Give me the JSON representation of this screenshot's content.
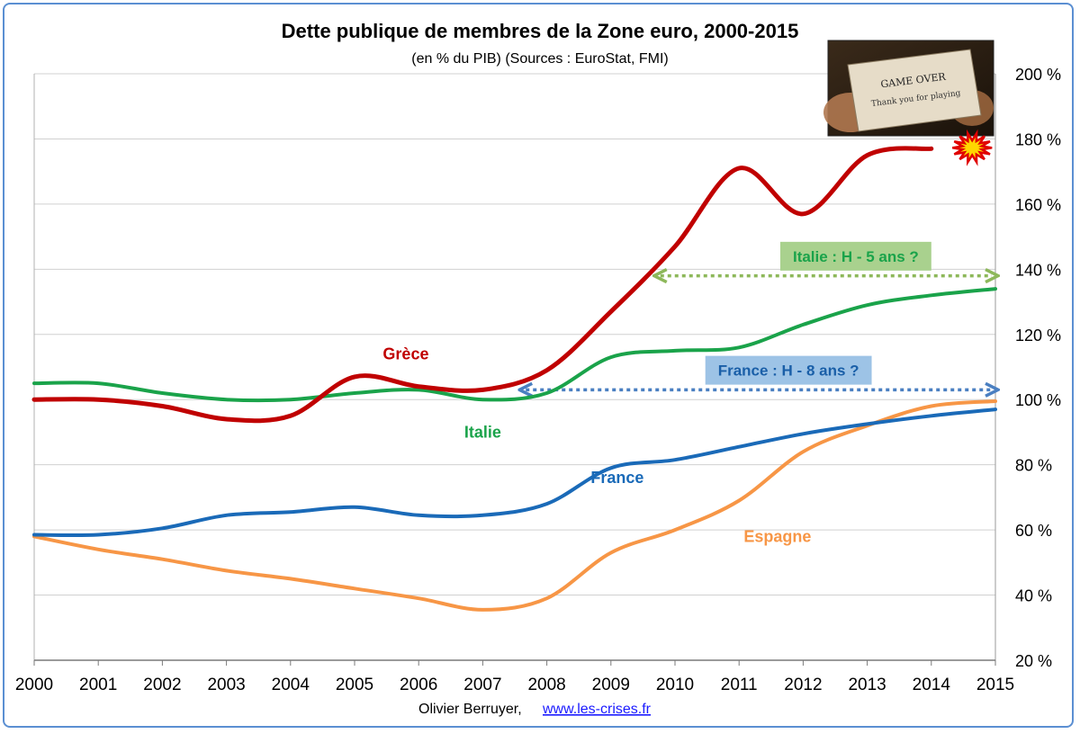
{
  "chart_data": {
    "type": "line",
    "title": "Dette publique de membres de la Zone euro, 2000-2015",
    "subtitle": "(en % du PIB) (Sources : EuroStat, FMI)",
    "x": [
      2000,
      2001,
      2002,
      2003,
      2004,
      2005,
      2006,
      2007,
      2008,
      2009,
      2010,
      2011,
      2012,
      2013,
      2014,
      2015
    ],
    "x_tick_labels": [
      "2000",
      "2001",
      "2002",
      "2003",
      "2004",
      "2005",
      "2006",
      "2007",
      "2008",
      "2009",
      "2010",
      "2011",
      "2012",
      "2013",
      "2014",
      "2015"
    ],
    "ylim": [
      20,
      200
    ],
    "y_ticks": [
      20,
      40,
      60,
      80,
      100,
      120,
      140,
      160,
      180,
      200
    ],
    "y_tick_labels": [
      "20 %",
      "40 %",
      "60 %",
      "80 %",
      "100 %",
      "120 %",
      "140 %",
      "160 %",
      "180 %",
      "200 %"
    ],
    "y_axis_side": "right",
    "grid": true,
    "series": [
      {
        "name": "Grèce",
        "color": "#c00000",
        "x": [
          2000,
          2001,
          2002,
          2003,
          2004,
          2005,
          2006,
          2007,
          2008,
          2009,
          2010,
          2011,
          2012,
          2013,
          2014
        ],
        "values": [
          100,
          100,
          98,
          94,
          95,
          107,
          104,
          103,
          109,
          127,
          147,
          171,
          157,
          175,
          177
        ]
      },
      {
        "name": "Italie",
        "color": "#1aa34a",
        "x": [
          2000,
          2001,
          2002,
          2003,
          2004,
          2005,
          2006,
          2007,
          2008,
          2009,
          2010,
          2011,
          2012,
          2013,
          2014,
          2015
        ],
        "values": [
          105,
          105,
          102,
          100,
          100,
          102,
          103,
          100,
          102,
          113,
          115,
          116,
          123,
          129,
          132,
          134
        ]
      },
      {
        "name": "France",
        "color": "#1a6ab8",
        "x": [
          2000,
          2001,
          2002,
          2003,
          2004,
          2005,
          2006,
          2007,
          2008,
          2009,
          2010,
          2011,
          2012,
          2013,
          2014,
          2015
        ],
        "values": [
          58.5,
          58.5,
          60.5,
          64.5,
          65.5,
          67,
          64.5,
          64.5,
          68,
          79,
          81.5,
          85.5,
          89.5,
          92.5,
          95,
          97
        ]
      },
      {
        "name": "Espagne",
        "color": "#f79646",
        "x": [
          2000,
          2001,
          2002,
          2003,
          2004,
          2005,
          2006,
          2007,
          2008,
          2009,
          2010,
          2011,
          2012,
          2013,
          2014,
          2015
        ],
        "values": [
          58,
          54,
          51,
          47.5,
          45,
          42,
          39,
          35.5,
          39,
          53,
          60,
          69,
          84,
          92,
          98,
          99.5
        ]
      }
    ],
    "series_labels": [
      {
        "text": "Grèce",
        "color": "#c00000",
        "x": 2005.8,
        "y": 114
      },
      {
        "text": "Italie",
        "color": "#1aa34a",
        "x": 2007.0,
        "y": 90
      },
      {
        "text": "France",
        "color": "#1a6ab8",
        "x": 2009.1,
        "y": 76
      },
      {
        "text": "Espagne",
        "color": "#f79646",
        "x": 2011.6,
        "y": 58
      }
    ],
    "annotations": [
      {
        "name": "italie-horizon",
        "text": "Italie : H - 5 ans ?",
        "color": "#1aa34a",
        "box_color": "#a9d18e",
        "arrow_color": "#8db85a",
        "x_from": 2009.8,
        "x_to": 2015,
        "y": 138,
        "label_y": 144
      },
      {
        "name": "france-horizon",
        "text": "France : H - 8 ans ?",
        "color": "#1a5fa8",
        "box_color": "#9dc3e6",
        "arrow_color": "#4a7fc1",
        "x_from": 2007.7,
        "x_to": 2015,
        "y": 103,
        "label_y": 109
      }
    ],
    "explosion_marker": {
      "x": 2014.3,
      "y": 177,
      "fill": "#ffd700",
      "stroke": "#e00000"
    },
    "inset_image": {
      "lines": [
        "GAME OVER",
        "Thank you for playing"
      ]
    },
    "credit": {
      "author": "Olivier Berruyer,",
      "link_text": "www.les-crises.fr"
    }
  }
}
